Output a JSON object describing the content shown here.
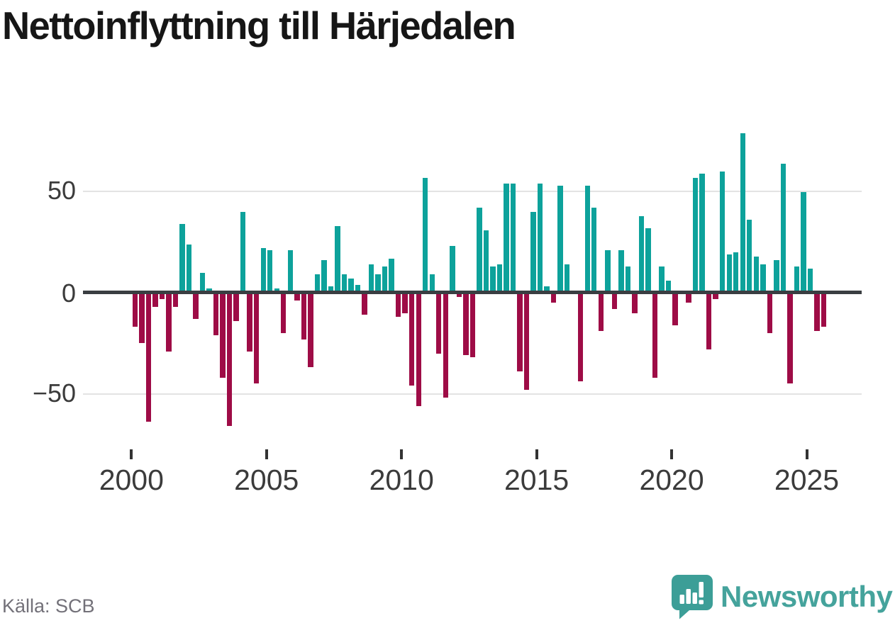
{
  "title": "Nettoinflyttning till Härjedalen",
  "source_caption": "Källa: SCB",
  "branding": {
    "wordmark": "Newsworthy",
    "icon": "newsworthy-speech-bubble-bar-chart-icon"
  },
  "colors": {
    "positive_bar": "#0DA29B",
    "negative_bar": "#9E0C46",
    "zero_axis": "#3A3E42",
    "gridline": "#E3E3E3",
    "title_text": "#161616",
    "axis_text": "#3B3B3B",
    "source_text": "#737179",
    "brand_teal": "#45A39C"
  },
  "chart_data": {
    "type": "bar",
    "title": "Nettoinflyttning till Härjedalen",
    "frequency": "quarterly",
    "x_period_start": "2000 Q1",
    "x_period_end": "2025 Q3",
    "x_tick_labels": [
      "2000",
      "2005",
      "2010",
      "2015",
      "2020",
      "2025"
    ],
    "y_tick_labels": [
      "50",
      "0",
      "−50"
    ],
    "y_gridlines": [
      50,
      -50
    ],
    "ylim": [
      -70,
      85
    ],
    "grid": "horizontal",
    "legend": "none",
    "series": [
      {
        "name": "Nettoinflyttning",
        "values": [
          -17,
          -25,
          -64,
          -7,
          -3,
          -29,
          -7,
          34,
          24,
          -13,
          10,
          2,
          -21,
          -42,
          -66,
          -14,
          40,
          -29,
          -45,
          22,
          21,
          2,
          -20,
          21,
          -4,
          -23,
          -37,
          9,
          16,
          3,
          33,
          9,
          7,
          4,
          -11,
          14,
          9,
          13,
          17,
          -12,
          -10,
          -46,
          -56,
          57,
          9,
          -30,
          -52,
          23,
          -2,
          -31,
          -32,
          42,
          31,
          13,
          14,
          54,
          54,
          -39,
          -48,
          40,
          54,
          3,
          -5,
          53,
          14,
          0,
          -44,
          53,
          42,
          -19,
          21,
          -8,
          21,
          13,
          -10,
          38,
          32,
          -42,
          13,
          6,
          -16,
          0,
          -5,
          57,
          59,
          -28,
          -3,
          60,
          19,
          20,
          79,
          36,
          18,
          14,
          -20,
          16,
          64,
          -45,
          13,
          50,
          12,
          -19,
          -17
        ]
      }
    ]
  }
}
